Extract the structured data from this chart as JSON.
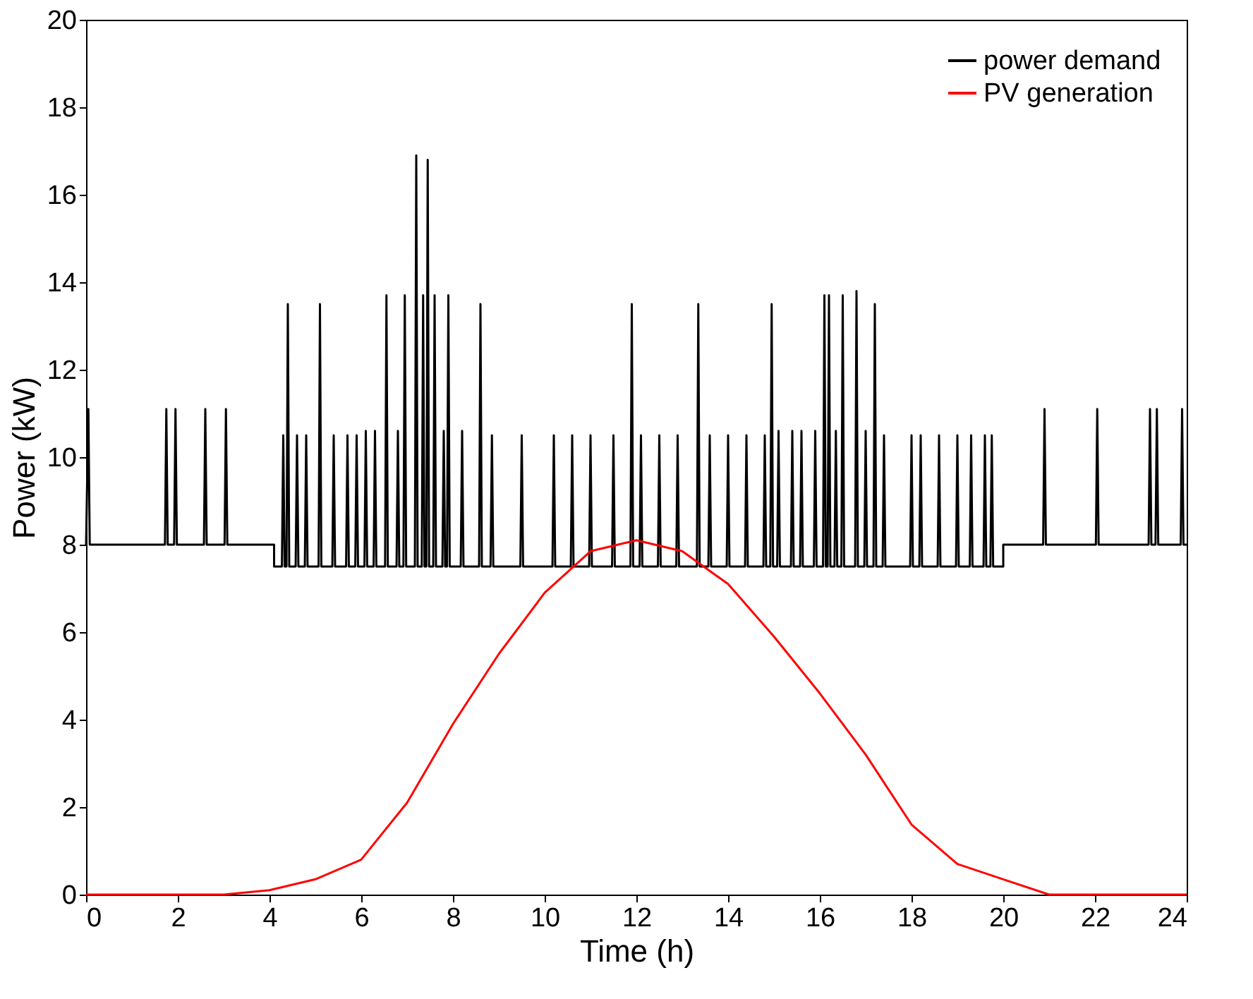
{
  "chart_data": {
    "type": "line",
    "xlabel": "Time (h)",
    "ylabel": "Power (kW)",
    "xlim": [
      0,
      24
    ],
    "ylim": [
      0,
      20
    ],
    "xticks": [
      0,
      2,
      4,
      6,
      8,
      10,
      12,
      14,
      16,
      18,
      20,
      22,
      24
    ],
    "yticks": [
      0,
      2,
      4,
      6,
      8,
      10,
      12,
      14,
      16,
      18,
      20
    ],
    "grid": false,
    "legend": "top right",
    "marker": "none",
    "line_style": "solid",
    "series": [
      {
        "name": "power demand",
        "color": "#000000",
        "x": [
          0,
          0.05,
          0.08,
          1.72,
          1.75,
          1.78,
          1.92,
          1.95,
          1.98,
          2.57,
          2.6,
          2.63,
          3.02,
          3.05,
          3.08,
          4.1,
          4.1,
          4.27,
          4.3,
          4.33,
          4.37,
          4.4,
          4.43,
          4.57,
          4.6,
          4.63,
          4.77,
          4.8,
          4.83,
          5.07,
          5.1,
          5.13,
          5.37,
          5.4,
          5.43,
          5.67,
          5.7,
          5.73,
          5.87,
          5.9,
          5.93,
          6.07,
          6.1,
          6.13,
          6.27,
          6.3,
          6.33,
          6.52,
          6.55,
          6.58,
          6.77,
          6.8,
          6.83,
          6.92,
          6.95,
          6.98,
          7.17,
          7.2,
          7.23,
          7.32,
          7.35,
          7.38,
          7.42,
          7.45,
          7.48,
          7.57,
          7.6,
          7.63,
          7.77,
          7.8,
          7.83,
          7.87,
          7.9,
          7.93,
          8.17,
          8.2,
          8.23,
          8.57,
          8.6,
          8.63,
          8.82,
          8.85,
          8.88,
          9.47,
          9.5,
          9.53,
          10.17,
          10.2,
          10.23,
          10.57,
          10.6,
          10.63,
          10.97,
          11.0,
          11.03,
          11.47,
          11.5,
          11.53,
          11.87,
          11.9,
          11.93,
          12.07,
          12.1,
          12.13,
          12.47,
          12.5,
          12.53,
          12.87,
          12.9,
          12.93,
          13.32,
          13.35,
          13.38,
          13.57,
          13.6,
          13.63,
          13.97,
          14.0,
          14.03,
          14.37,
          14.4,
          14.43,
          14.77,
          14.8,
          14.83,
          14.92,
          14.95,
          14.98,
          15.07,
          15.1,
          15.13,
          15.37,
          15.4,
          15.43,
          15.57,
          15.6,
          15.63,
          15.87,
          15.9,
          15.93,
          16.07,
          16.1,
          16.13,
          16.17,
          16.2,
          16.23,
          16.32,
          16.35,
          16.38,
          16.47,
          16.5,
          16.53,
          16.77,
          16.8,
          16.83,
          16.97,
          17.0,
          17.03,
          17.17,
          17.2,
          17.23,
          17.37,
          17.4,
          17.43,
          17.97,
          18.0,
          18.03,
          18.17,
          18.2,
          18.23,
          18.57,
          18.6,
          18.63,
          18.97,
          19.0,
          19.03,
          19.27,
          19.3,
          19.33,
          19.57,
          19.6,
          19.63,
          19.72,
          19.75,
          19.78,
          20.0,
          20.0,
          20.87,
          20.9,
          20.93,
          22.02,
          22.05,
          22.08,
          23.17,
          23.2,
          23.23,
          23.32,
          23.35,
          23.38,
          23.87,
          23.9,
          23.93,
          24
        ],
        "values": [
          8,
          11.1,
          8,
          8,
          11.1,
          8,
          8,
          11.1,
          8,
          8,
          11.1,
          8,
          8,
          11.1,
          8,
          8,
          7.5,
          7.5,
          10.5,
          7.5,
          7.5,
          13.5,
          7.5,
          7.5,
          10.5,
          7.5,
          7.5,
          10.5,
          7.5,
          7.5,
          13.5,
          7.5,
          7.5,
          10.5,
          7.5,
          7.5,
          10.5,
          7.5,
          7.5,
          10.5,
          7.5,
          7.5,
          10.6,
          7.5,
          7.5,
          10.6,
          7.5,
          7.5,
          13.7,
          7.5,
          7.5,
          10.6,
          7.5,
          7.5,
          13.7,
          7.5,
          7.5,
          16.9,
          7.5,
          7.5,
          13.7,
          7.5,
          7.5,
          16.8,
          7.5,
          7.5,
          13.7,
          7.5,
          7.5,
          10.6,
          7.5,
          7.5,
          13.7,
          7.5,
          7.5,
          10.6,
          7.5,
          7.5,
          13.5,
          7.5,
          7.5,
          10.5,
          7.5,
          7.5,
          10.5,
          7.5,
          7.5,
          10.5,
          7.5,
          7.5,
          10.5,
          7.5,
          7.5,
          10.5,
          7.5,
          7.5,
          10.5,
          7.5,
          7.5,
          13.5,
          7.5,
          7.5,
          10.5,
          7.5,
          7.5,
          10.5,
          7.5,
          7.5,
          10.5,
          7.5,
          7.5,
          13.5,
          7.5,
          7.5,
          10.5,
          7.5,
          7.5,
          10.5,
          7.5,
          7.5,
          10.5,
          7.5,
          7.5,
          10.5,
          7.5,
          7.5,
          13.5,
          7.5,
          7.5,
          10.6,
          7.5,
          7.5,
          10.6,
          7.5,
          7.5,
          10.6,
          7.5,
          7.5,
          10.6,
          7.5,
          7.5,
          13.7,
          7.5,
          7.5,
          13.7,
          7.5,
          7.5,
          10.6,
          7.5,
          7.5,
          13.7,
          7.5,
          7.5,
          13.8,
          7.5,
          7.5,
          10.6,
          7.5,
          7.5,
          13.5,
          7.5,
          7.5,
          10.5,
          7.5,
          7.5,
          10.5,
          7.5,
          7.5,
          10.5,
          7.5,
          7.5,
          10.5,
          7.5,
          7.5,
          10.5,
          7.5,
          7.5,
          10.5,
          7.5,
          7.5,
          10.5,
          7.5,
          7.5,
          10.5,
          7.5,
          7.5,
          8,
          8,
          11.1,
          8,
          8,
          11.1,
          8,
          8,
          11.1,
          8,
          8,
          11.1,
          8,
          8,
          11.1,
          8,
          8
        ]
      },
      {
        "name": "PV generation",
        "color": "#ff0000",
        "x": [
          0,
          1,
          2,
          3,
          4,
          5,
          6,
          7,
          8,
          9,
          10,
          11,
          12,
          13,
          14,
          15,
          16,
          17,
          18,
          19,
          20,
          21,
          22,
          23,
          24
        ],
        "values": [
          0,
          0,
          0,
          0,
          0.1,
          0.35,
          0.8,
          2.1,
          3.9,
          5.5,
          6.9,
          7.85,
          8.1,
          7.85,
          7.1,
          5.9,
          4.6,
          3.2,
          1.6,
          0.7,
          0.35,
          0,
          0,
          0,
          0
        ]
      }
    ]
  }
}
